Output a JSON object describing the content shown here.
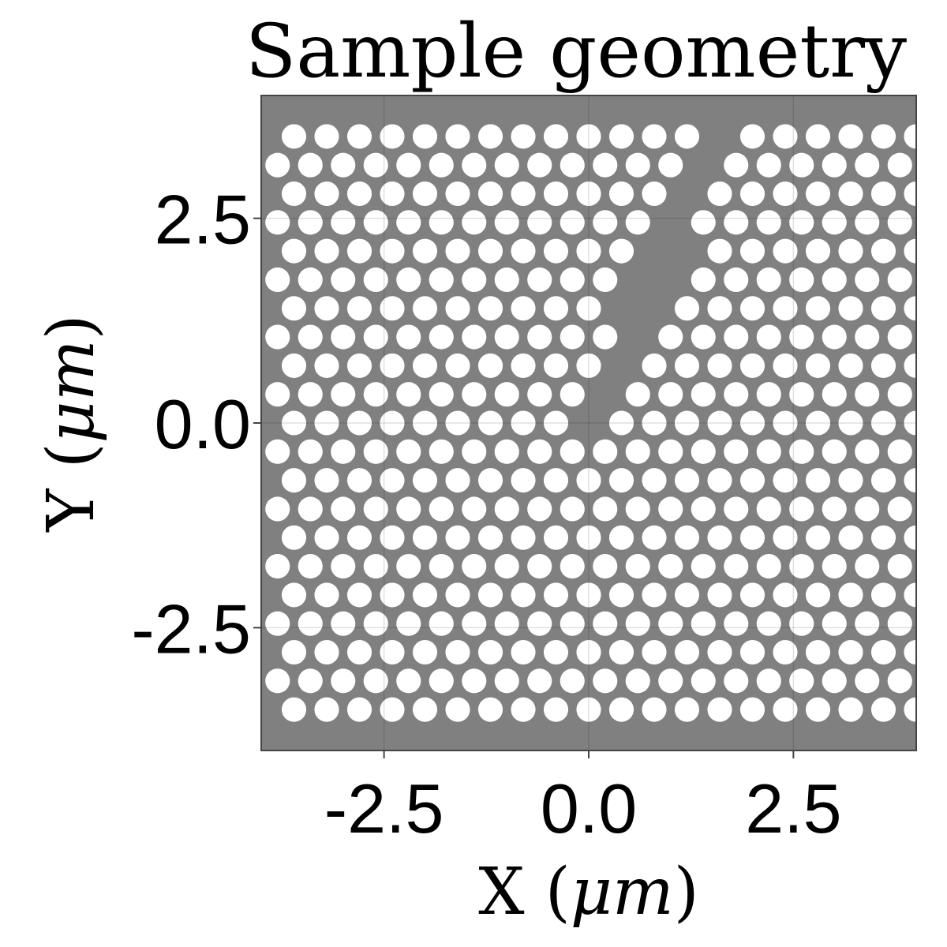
{
  "chart_data": {
    "type": "scatter",
    "title": "Sample geometry",
    "xlabel": "X (μm)",
    "ylabel": "Y (μm)",
    "xlabel_parts": {
      "letter": "X",
      "unit": "μm"
    },
    "ylabel_parts": {
      "letter": "Y",
      "unit": "μm"
    },
    "xlim": [
      -4.0,
      4.0
    ],
    "ylim": [
      -4.0,
      4.0
    ],
    "xticks": [
      -2.5,
      0.0,
      2.5
    ],
    "yticks": [
      2.5,
      0.0,
      -2.5
    ],
    "xtick_labels": [
      "-2.5",
      "0.0",
      "2.5"
    ],
    "ytick_labels": [
      "2.5",
      "0.0",
      "-2.5"
    ],
    "grid": true,
    "background_color": "#808080",
    "hole_color": "#ffffff",
    "lattice": {
      "kind": "triangular",
      "row_spacing": 0.35,
      "column_spacing": 0.4,
      "hole_radius": 0.15,
      "top_row_y": 3.5,
      "bottom_row_y": -3.5,
      "even_row_first_x": -3.6,
      "odd_row_first_x": -3.8
    },
    "defect": {
      "description": "hole-free channel",
      "horizontal_row_y": 0.2,
      "channel_from_x": 0.0,
      "channel_to_x": 1.6,
      "channel_from_y": 0.0,
      "channel_to_y": 3.5,
      "channel_halfwidth": 0.25
    }
  }
}
